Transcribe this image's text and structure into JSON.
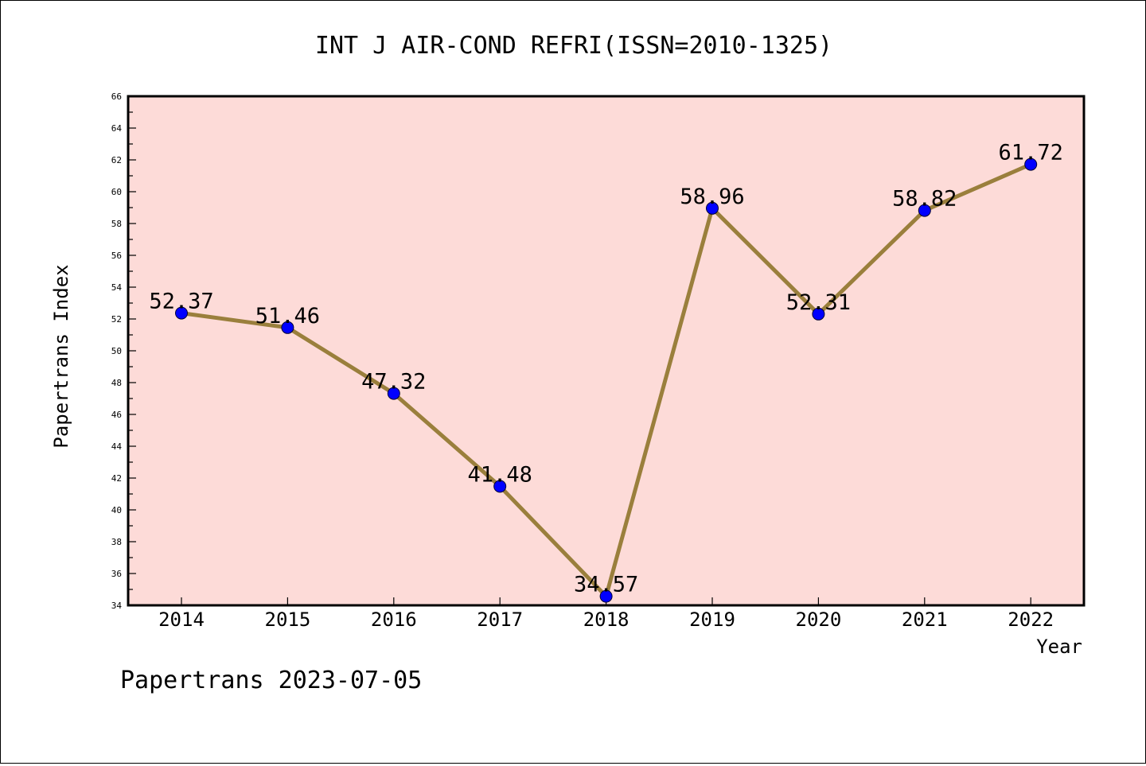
{
  "chart_data": {
    "type": "line",
    "title": "INT J AIR-COND REFRI(ISSN=2010-1325)",
    "xlabel": "Year",
    "ylabel": "Papertrans Index",
    "categories": [
      "2014",
      "2015",
      "2016",
      "2017",
      "2018",
      "2019",
      "2020",
      "2021",
      "2022"
    ],
    "series": [
      {
        "values": [
          52.37,
          51.46,
          47.32,
          41.48,
          34.57,
          58.96,
          52.31,
          58.82,
          61.72
        ],
        "labels": [
          "52.37",
          "51.46",
          "47.32",
          "41.48",
          "34.57",
          "58.96",
          "52.31",
          "58.82",
          "61.72"
        ]
      }
    ],
    "ylim": [
      34,
      66
    ],
    "yticks": [
      "34",
      "36",
      "38",
      "40",
      "42",
      "44",
      "46",
      "48",
      "50",
      "52",
      "54",
      "56",
      "58",
      "60",
      "62",
      "64",
      "66"
    ],
    "grid": false,
    "colors": {
      "plot_background": "#fddbd8",
      "line": "#9a7f3c",
      "marker": "#0000ff",
      "axis": "#000000"
    }
  },
  "footer": {
    "text": "Papertrans 2023-07-05"
  }
}
